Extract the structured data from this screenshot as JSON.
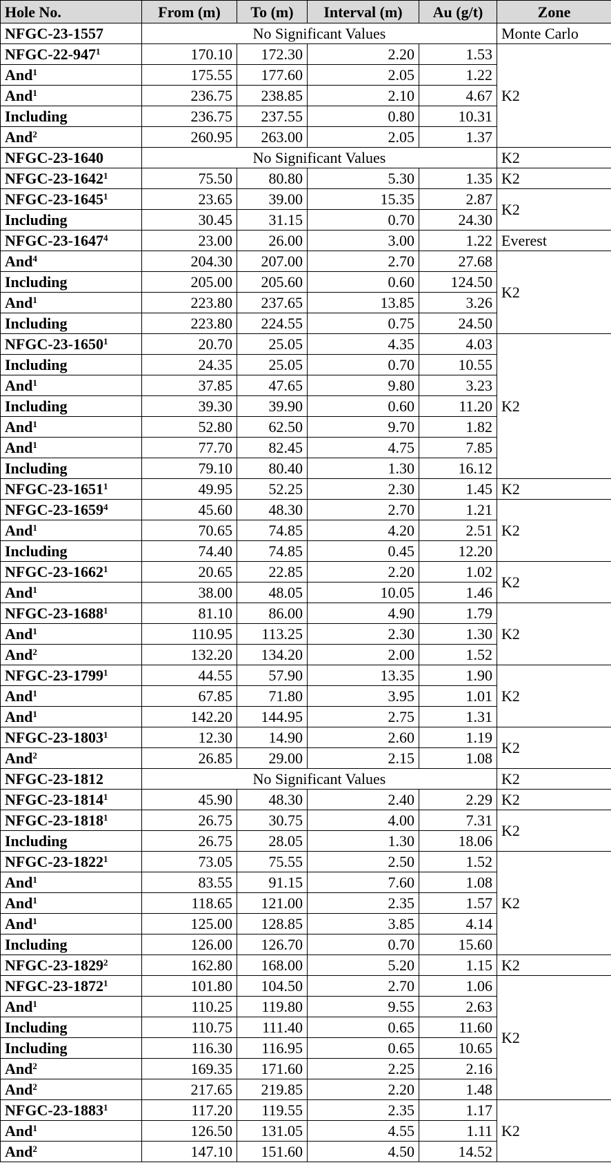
{
  "table": {
    "header": [
      "Hole No.",
      "From (m)",
      "To (m)",
      "Interval (m)",
      "Au (g/t)",
      "Zone"
    ],
    "rows": [
      {
        "hole": "NFGC-23-1557",
        "result": "No Significant Values",
        "zone": "Monte Carlo"
      },
      {
        "hole": "NFGC-22-947",
        "note": "1",
        "values": [
          "170.10",
          "172.30",
          "2.20",
          "1.53"
        ],
        "zone": "K2"
      },
      {
        "hole": "And",
        "note": "1",
        "values": [
          "175.55",
          "177.60",
          "2.05",
          "1.22"
        ],
        "zone": null
      },
      {
        "hole": "And",
        "note": "1",
        "values": [
          "236.75",
          "238.85",
          "2.10",
          "4.67"
        ],
        "zone": null
      },
      {
        "hole": "Including",
        "values": [
          "236.75",
          "237.55",
          "0.80",
          "10.31"
        ],
        "zone": null
      },
      {
        "hole": "And",
        "note": "2",
        "values": [
          "260.95",
          "263.00",
          "2.05",
          "1.37"
        ],
        "zone": null
      },
      {
        "hole": "NFGC-23-1640",
        "result": "No Significant Values",
        "zone": "K2"
      },
      {
        "hole": "NFGC-23-1642",
        "note": "1",
        "values": [
          "75.50",
          "80.80",
          "5.30",
          "1.35"
        ],
        "zone": "K2"
      },
      {
        "hole": "NFGC-23-1645",
        "note": "1",
        "values": [
          "23.65",
          "39.00",
          "15.35",
          "2.87"
        ],
        "zone": "K2"
      },
      {
        "hole": "Including",
        "values": [
          "30.45",
          "31.15",
          "0.70",
          "24.30"
        ],
        "zone": null
      },
      {
        "hole": "NFGC-23-1647",
        "note": "4",
        "values": [
          "23.00",
          "26.00",
          "3.00",
          "1.22"
        ],
        "zone": "Everest"
      },
      {
        "hole": "And",
        "note": "4",
        "values": [
          "204.30",
          "207.00",
          "2.70",
          "27.68"
        ],
        "zone": "K2"
      },
      {
        "hole": "Including",
        "values": [
          "205.00",
          "205.60",
          "0.60",
          "124.50"
        ],
        "zone": null
      },
      {
        "hole": "And",
        "note": "1",
        "values": [
          "223.80",
          "237.65",
          "13.85",
          "3.26"
        ],
        "zone": null
      },
      {
        "hole": "Including",
        "values": [
          "223.80",
          "224.55",
          "0.75",
          "24.50"
        ],
        "zone": null
      },
      {
        "hole": "NFGC-23-1650",
        "note": "1",
        "values": [
          "20.70",
          "25.05",
          "4.35",
          "4.03"
        ],
        "zone": "K2"
      },
      {
        "hole": "Including",
        "values": [
          "24.35",
          "25.05",
          "0.70",
          "10.55"
        ],
        "zone": null
      },
      {
        "hole": "And",
        "note": "1",
        "values": [
          "37.85",
          "47.65",
          "9.80",
          "3.23"
        ],
        "zone": null
      },
      {
        "hole": "Including",
        "values": [
          "39.30",
          "39.90",
          "0.60",
          "11.20"
        ],
        "zone": null
      },
      {
        "hole": "And",
        "note": "1",
        "values": [
          "52.80",
          "62.50",
          "9.70",
          "1.82"
        ],
        "zone": null
      },
      {
        "hole": "And",
        "note": "1",
        "values": [
          "77.70",
          "82.45",
          "4.75",
          "7.85"
        ],
        "zone": null
      },
      {
        "hole": "Including",
        "values": [
          "79.10",
          "80.40",
          "1.30",
          "16.12"
        ],
        "zone": null
      },
      {
        "hole": "NFGC-23-1651",
        "note": "1",
        "values": [
          "49.95",
          "52.25",
          "2.30",
          "1.45"
        ],
        "zone": "K2"
      },
      {
        "hole": "NFGC-23-1659",
        "note": "4",
        "values": [
          "45.60",
          "48.30",
          "2.70",
          "1.21"
        ],
        "zone": "K2"
      },
      {
        "hole": "And",
        "note": "1",
        "values": [
          "70.65",
          "74.85",
          "4.20",
          "2.51"
        ],
        "zone": null
      },
      {
        "hole": "Including",
        "values": [
          "74.40",
          "74.85",
          "0.45",
          "12.20"
        ],
        "zone": null
      },
      {
        "hole": "NFGC-23-1662",
        "note": "1",
        "values": [
          "20.65",
          "22.85",
          "2.20",
          "1.02"
        ],
        "zone": "K2"
      },
      {
        "hole": "And",
        "note": "1",
        "values": [
          "38.00",
          "48.05",
          "10.05",
          "1.46"
        ],
        "zone": null
      },
      {
        "hole": "NFGC-23-1688",
        "note": "1",
        "values": [
          "81.10",
          "86.00",
          "4.90",
          "1.79"
        ],
        "zone": "K2"
      },
      {
        "hole": "And",
        "note": "1",
        "values": [
          "110.95",
          "113.25",
          "2.30",
          "1.30"
        ],
        "zone": null
      },
      {
        "hole": "And",
        "note": "2",
        "values": [
          "132.20",
          "134.20",
          "2.00",
          "1.52"
        ],
        "zone": null
      },
      {
        "hole": "NFGC-23-1799",
        "note": "1",
        "values": [
          "44.55",
          "57.90",
          "13.35",
          "1.90"
        ],
        "zone": "K2"
      },
      {
        "hole": "And",
        "note": "1",
        "values": [
          "67.85",
          "71.80",
          "3.95",
          "1.01"
        ],
        "zone": null
      },
      {
        "hole": "And",
        "note": "1",
        "values": [
          "142.20",
          "144.95",
          "2.75",
          "1.31"
        ],
        "zone": null
      },
      {
        "hole": "NFGC-23-1803",
        "note": "1",
        "values": [
          "12.30",
          "14.90",
          "2.60",
          "1.19"
        ],
        "zone": "K2"
      },
      {
        "hole": "And",
        "note": "2",
        "values": [
          "26.85",
          "29.00",
          "2.15",
          "1.08"
        ],
        "zone": null
      },
      {
        "hole": "NFGC-23-1812",
        "result": "No Significant Values",
        "zone": "K2"
      },
      {
        "hole": "NFGC-23-1814",
        "note": "1",
        "values": [
          "45.90",
          "48.30",
          "2.40",
          "2.29"
        ],
        "zone": "K2"
      },
      {
        "hole": "NFGC-23-1818",
        "note": "1",
        "values": [
          "26.75",
          "30.75",
          "4.00",
          "7.31"
        ],
        "zone": "K2"
      },
      {
        "hole": "Including",
        "values": [
          "26.75",
          "28.05",
          "1.30",
          "18.06"
        ],
        "zone": null
      },
      {
        "hole": "NFGC-23-1822",
        "note": "1",
        "values": [
          "73.05",
          "75.55",
          "2.50",
          "1.52"
        ],
        "zone": "K2"
      },
      {
        "hole": "And",
        "note": "1",
        "values": [
          "83.55",
          "91.15",
          "7.60",
          "1.08"
        ],
        "zone": null
      },
      {
        "hole": "And",
        "note": "1",
        "values": [
          "118.65",
          "121.00",
          "2.35",
          "1.57"
        ],
        "zone": null
      },
      {
        "hole": "And",
        "note": "1",
        "values": [
          "125.00",
          "128.85",
          "3.85",
          "4.14"
        ],
        "zone": null
      },
      {
        "hole": "Including",
        "values": [
          "126.00",
          "126.70",
          "0.70",
          "15.60"
        ],
        "zone": null
      },
      {
        "hole": "NFGC-23-1829",
        "note": "2",
        "values": [
          "162.80",
          "168.00",
          "5.20",
          "1.15"
        ],
        "zone": "K2"
      },
      {
        "hole": "NFGC-23-1872",
        "note": "1",
        "values": [
          "101.80",
          "104.50",
          "2.70",
          "1.06"
        ],
        "zone": "K2"
      },
      {
        "hole": "And",
        "note": "1",
        "values": [
          "110.25",
          "119.80",
          "9.55",
          "2.63"
        ],
        "zone": null
      },
      {
        "hole": "Including",
        "values": [
          "110.75",
          "111.40",
          "0.65",
          "11.60"
        ],
        "zone": null
      },
      {
        "hole": "Including",
        "values": [
          "116.30",
          "116.95",
          "0.65",
          "10.65"
        ],
        "zone": null
      },
      {
        "hole": "And",
        "note": "2",
        "values": [
          "169.35",
          "171.60",
          "2.25",
          "2.16"
        ],
        "zone": null
      },
      {
        "hole": "And",
        "note": "2",
        "values": [
          "217.65",
          "219.85",
          "2.20",
          "1.48"
        ],
        "zone": null
      },
      {
        "hole": "NFGC-23-1883",
        "note": "1",
        "values": [
          "117.20",
          "119.55",
          "2.35",
          "1.17"
        ],
        "zone": "K2"
      },
      {
        "hole": "And",
        "note": "1",
        "values": [
          "126.50",
          "131.05",
          "4.55",
          "1.11"
        ],
        "zone": null
      },
      {
        "hole": "And",
        "note": "2",
        "values": [
          "147.10",
          "151.60",
          "4.50",
          "14.52"
        ],
        "zone": null
      }
    ]
  }
}
